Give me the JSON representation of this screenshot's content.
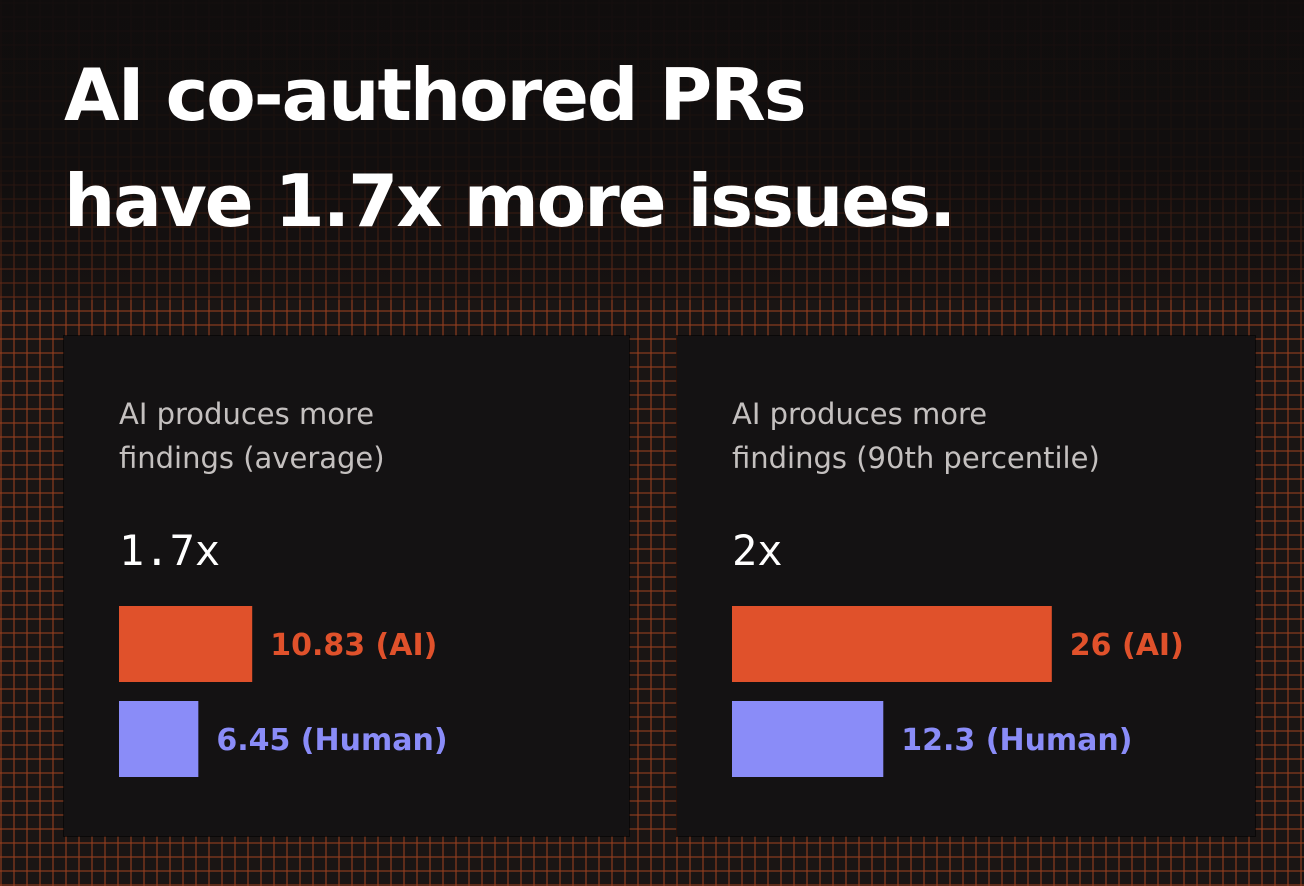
{
  "headline": {
    "line1": "AI co-authored PRs",
    "line2": "have 1.7x more issues."
  },
  "colors": {
    "ai": "#e0512b",
    "human": "#8a8cf8",
    "background": "#1a1514",
    "panel": "#141213"
  },
  "chart_data": [
    {
      "type": "bar",
      "orientation": "horizontal",
      "title_lines": [
        "AI produces more",
        "findings (average)"
      ],
      "multiplier": "1.7x",
      "categories": [
        "AI",
        "Human"
      ],
      "values": [
        10.83,
        6.45
      ],
      "labels": [
        "10.83 (AI)",
        "6.45 (Human)"
      ],
      "colors": [
        "#e0512b",
        "#8a8cf8"
      ]
    },
    {
      "type": "bar",
      "orientation": "horizontal",
      "title_lines": [
        "AI produces more",
        "findings (90th percentile)"
      ],
      "multiplier": "2x",
      "categories": [
        "AI",
        "Human"
      ],
      "values": [
        26,
        12.3
      ],
      "labels": [
        "26 (AI)",
        "12.3 (Human)"
      ],
      "colors": [
        "#e0512b",
        "#8a8cf8"
      ]
    }
  ]
}
